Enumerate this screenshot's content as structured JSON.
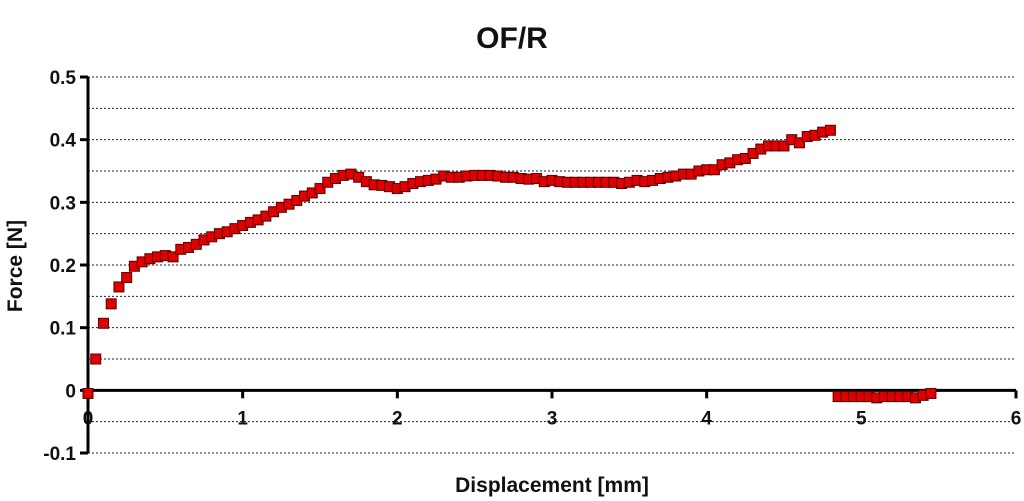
{
  "chart_data": {
    "type": "scatter",
    "title": "OF/R",
    "xlabel": "Displacement [mm]",
    "ylabel": "Force [N]",
    "xlim": [
      0,
      6
    ],
    "ylim": [
      -0.1,
      0.5
    ],
    "x_ticks": [
      "0",
      "1",
      "2",
      "3",
      "4",
      "5",
      "6"
    ],
    "y_ticks": [
      "-0.1",
      "0",
      "0.1",
      "0.2",
      "0.3",
      "0.4",
      "0.5"
    ],
    "grid": "horizontal dotted",
    "marker": "square",
    "series": [
      {
        "color": "#e00000",
        "points": [
          [
            0.0,
            -0.005
          ],
          [
            0.05,
            0.05
          ],
          [
            0.1,
            0.107
          ],
          [
            0.15,
            0.138
          ],
          [
            0.2,
            0.165
          ],
          [
            0.25,
            0.18
          ],
          [
            0.3,
            0.198
          ],
          [
            0.35,
            0.205
          ],
          [
            0.4,
            0.21
          ],
          [
            0.45,
            0.213
          ],
          [
            0.5,
            0.215
          ],
          [
            0.55,
            0.213
          ],
          [
            0.6,
            0.225
          ],
          [
            0.65,
            0.228
          ],
          [
            0.7,
            0.233
          ],
          [
            0.75,
            0.24
          ],
          [
            0.8,
            0.245
          ],
          [
            0.85,
            0.25
          ],
          [
            0.9,
            0.253
          ],
          [
            0.95,
            0.258
          ],
          [
            1.0,
            0.263
          ],
          [
            1.05,
            0.268
          ],
          [
            1.1,
            0.272
          ],
          [
            1.15,
            0.278
          ],
          [
            1.2,
            0.285
          ],
          [
            1.25,
            0.292
          ],
          [
            1.3,
            0.297
          ],
          [
            1.35,
            0.303
          ],
          [
            1.4,
            0.31
          ],
          [
            1.45,
            0.315
          ],
          [
            1.5,
            0.322
          ],
          [
            1.55,
            0.332
          ],
          [
            1.6,
            0.338
          ],
          [
            1.65,
            0.343
          ],
          [
            1.7,
            0.345
          ],
          [
            1.75,
            0.34
          ],
          [
            1.8,
            0.333
          ],
          [
            1.85,
            0.328
          ],
          [
            1.9,
            0.327
          ],
          [
            1.95,
            0.325
          ],
          [
            2.0,
            0.322
          ],
          [
            2.05,
            0.325
          ],
          [
            2.1,
            0.33
          ],
          [
            2.15,
            0.333
          ],
          [
            2.2,
            0.335
          ],
          [
            2.25,
            0.337
          ],
          [
            2.3,
            0.342
          ],
          [
            2.35,
            0.34
          ],
          [
            2.4,
            0.34
          ],
          [
            2.45,
            0.342
          ],
          [
            2.5,
            0.343
          ],
          [
            2.55,
            0.343
          ],
          [
            2.6,
            0.343
          ],
          [
            2.65,
            0.342
          ],
          [
            2.7,
            0.34
          ],
          [
            2.75,
            0.34
          ],
          [
            2.8,
            0.338
          ],
          [
            2.85,
            0.337
          ],
          [
            2.9,
            0.338
          ],
          [
            2.95,
            0.333
          ],
          [
            3.0,
            0.335
          ],
          [
            3.05,
            0.333
          ],
          [
            3.1,
            0.332
          ],
          [
            3.15,
            0.332
          ],
          [
            3.2,
            0.332
          ],
          [
            3.25,
            0.332
          ],
          [
            3.3,
            0.332
          ],
          [
            3.35,
            0.332
          ],
          [
            3.4,
            0.332
          ],
          [
            3.45,
            0.33
          ],
          [
            3.5,
            0.332
          ],
          [
            3.55,
            0.335
          ],
          [
            3.6,
            0.333
          ],
          [
            3.65,
            0.335
          ],
          [
            3.7,
            0.338
          ],
          [
            3.75,
            0.34
          ],
          [
            3.8,
            0.342
          ],
          [
            3.85,
            0.345
          ],
          [
            3.9,
            0.345
          ],
          [
            3.95,
            0.35
          ],
          [
            4.0,
            0.352
          ],
          [
            4.05,
            0.352
          ],
          [
            4.1,
            0.36
          ],
          [
            4.15,
            0.363
          ],
          [
            4.2,
            0.368
          ],
          [
            4.25,
            0.37
          ],
          [
            4.3,
            0.378
          ],
          [
            4.35,
            0.385
          ],
          [
            4.4,
            0.39
          ],
          [
            4.45,
            0.39
          ],
          [
            4.5,
            0.39
          ],
          [
            4.55,
            0.4
          ],
          [
            4.6,
            0.395
          ],
          [
            4.65,
            0.405
          ],
          [
            4.7,
            0.407
          ],
          [
            4.75,
            0.412
          ],
          [
            4.8,
            0.415
          ],
          [
            4.85,
            -0.01
          ],
          [
            4.9,
            -0.01
          ],
          [
            4.95,
            -0.01
          ],
          [
            5.0,
            -0.01
          ],
          [
            5.05,
            -0.01
          ],
          [
            5.1,
            -0.012
          ],
          [
            5.15,
            -0.01
          ],
          [
            5.2,
            -0.01
          ],
          [
            5.25,
            -0.01
          ],
          [
            5.3,
            -0.01
          ],
          [
            5.35,
            -0.012
          ],
          [
            5.4,
            -0.008
          ],
          [
            5.45,
            -0.005
          ]
        ]
      }
    ]
  }
}
